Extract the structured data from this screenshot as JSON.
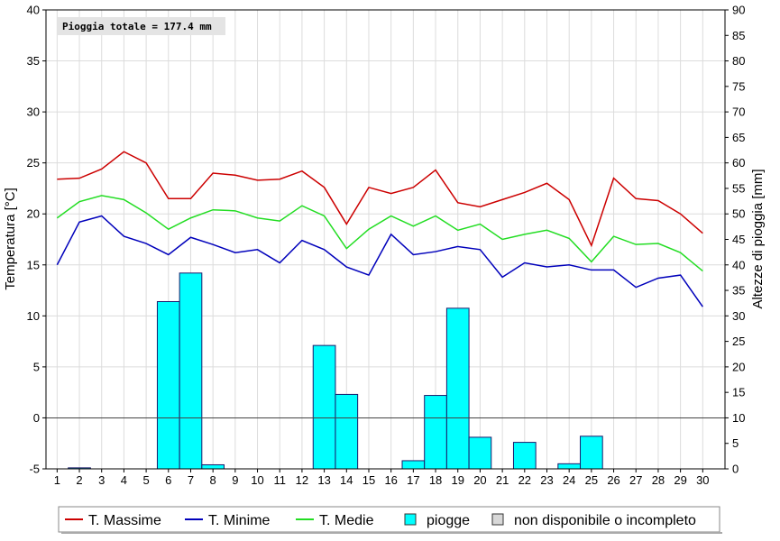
{
  "chart_data": {
    "type": "line",
    "annotation": "Pioggia totale = 177.4 mm",
    "ylabel_left": "Temperatura [°C]",
    "ylabel_right": "Altezze di pioggia [mm]",
    "ylim_left": [
      -5,
      40
    ],
    "ylim_right": [
      0,
      90
    ],
    "yticks_left": [
      -5,
      0,
      5,
      10,
      15,
      20,
      25,
      30,
      35,
      40
    ],
    "yticks_right": [
      0,
      5,
      10,
      15,
      20,
      25,
      30,
      35,
      40,
      45,
      50,
      55,
      60,
      65,
      70,
      75,
      80,
      85,
      90
    ],
    "zero_line": 0,
    "grid": true,
    "x": [
      1,
      2,
      3,
      4,
      5,
      6,
      7,
      8,
      9,
      10,
      11,
      12,
      13,
      14,
      15,
      16,
      17,
      18,
      19,
      20,
      21,
      22,
      23,
      24,
      25,
      26,
      27,
      28,
      29,
      30
    ],
    "series": [
      {
        "name": "T. Massime",
        "axis": "left",
        "kind": "line",
        "color": "#cc0000",
        "values": [
          23.4,
          23.5,
          24.4,
          26.1,
          25.0,
          21.5,
          21.5,
          24.0,
          23.8,
          23.3,
          23.4,
          24.2,
          22.6,
          19.0,
          22.6,
          22.0,
          22.6,
          24.3,
          21.1,
          20.7,
          21.4,
          22.1,
          23.0,
          21.4,
          16.9,
          23.5,
          21.5,
          21.3,
          20.0,
          18.1
        ]
      },
      {
        "name": "T. Minime",
        "axis": "left",
        "kind": "line",
        "color": "#0000bb",
        "values": [
          15.0,
          19.2,
          19.8,
          17.8,
          17.1,
          16.0,
          17.7,
          17.0,
          16.2,
          16.5,
          15.2,
          17.4,
          16.5,
          14.8,
          14.0,
          18.0,
          16.0,
          16.3,
          16.8,
          16.5,
          13.8,
          15.2,
          14.8,
          15.0,
          14.5,
          14.5,
          12.8,
          13.7,
          14.0,
          10.9
        ]
      },
      {
        "name": "T. Medie",
        "axis": "left",
        "kind": "line",
        "color": "#22dd22",
        "values": [
          19.6,
          21.2,
          21.8,
          21.4,
          20.1,
          18.5,
          19.6,
          20.4,
          20.3,
          19.6,
          19.3,
          20.8,
          19.8,
          16.6,
          18.5,
          19.8,
          18.8,
          19.8,
          18.4,
          19.0,
          17.5,
          18.0,
          18.4,
          17.6,
          15.3,
          17.8,
          17.0,
          17.1,
          16.2,
          14.4
        ]
      },
      {
        "name": "piogge",
        "axis": "right",
        "kind": "bar",
        "color": "#00ffff",
        "values": [
          0,
          0.2,
          0,
          0,
          0,
          32.8,
          38.4,
          0.8,
          0,
          0,
          0,
          0,
          24.2,
          14.6,
          0,
          0,
          1.6,
          14.4,
          31.5,
          6.2,
          0,
          5.2,
          0,
          1.0,
          6.4,
          0,
          0,
          0,
          0,
          0
        ]
      }
    ],
    "legend": [
      {
        "label": "T. Massime",
        "kind": "line",
        "color": "#cc0000"
      },
      {
        "label": "T. Minime",
        "kind": "line",
        "color": "#0000bb"
      },
      {
        "label": "T. Medie",
        "kind": "line",
        "color": "#22dd22"
      },
      {
        "label": "piogge",
        "kind": "box",
        "color": "#00ffff"
      },
      {
        "label": "non disponibile o incompleto",
        "kind": "box",
        "color": "#d8d8d8"
      }
    ],
    "legend_position": "bottom"
  }
}
